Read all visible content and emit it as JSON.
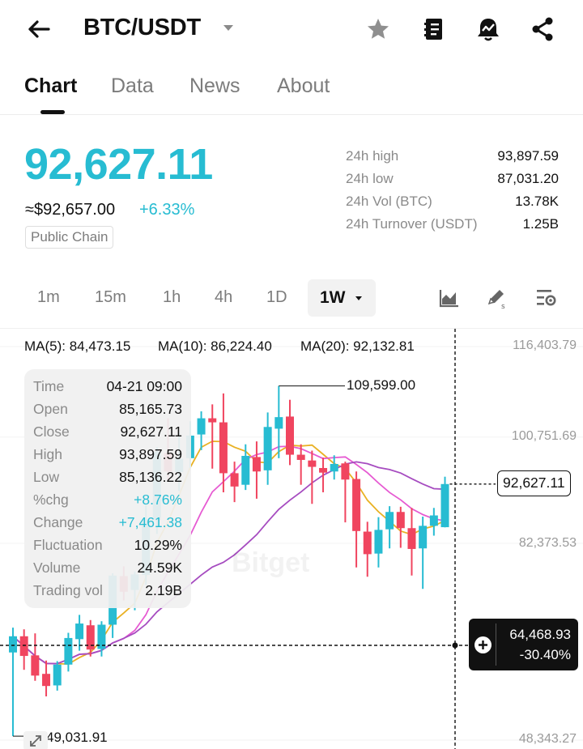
{
  "header": {
    "pair": "BTC/USDT",
    "icons": [
      "back-arrow-icon",
      "star-icon",
      "notebook-icon",
      "alert-bell-icon",
      "share-icon"
    ]
  },
  "tabs": [
    {
      "label": "Chart",
      "active": true
    },
    {
      "label": "Data",
      "active": false
    },
    {
      "label": "News",
      "active": false
    },
    {
      "label": "About",
      "active": false
    }
  ],
  "price": {
    "last": "92,627.11",
    "approx": "≈$92,657.00",
    "change_pct": "+6.33%",
    "tag": "Public Chain",
    "color_up": "#27bcd2"
  },
  "stats": [
    {
      "label": "24h high",
      "value": "93,897.59"
    },
    {
      "label": "24h low",
      "value": "87,031.20"
    },
    {
      "label": "24h Vol (BTC)",
      "value": "13.78K"
    },
    {
      "label": "24h Turnover (USDT)",
      "value": "1.25B"
    }
  ],
  "timeframes": {
    "items": [
      "1m",
      "15m",
      "1h",
      "4h",
      "1D"
    ],
    "selected": "1W"
  },
  "chart": {
    "ma": [
      {
        "label": "MA(5): 84,473.15",
        "color": "#e9b123"
      },
      {
        "label": "MA(10): 86,224.40",
        "color": "#e65ad2"
      },
      {
        "label": "MA(20): 92,132.81",
        "color": "#a64cc0"
      }
    ],
    "y_labels": [
      "116,403.79",
      "100,751.69",
      "82,373.53",
      "48,343.27"
    ],
    "high_marker": "109,599.00",
    "low_marker": "49,031.91",
    "last_price_label": "92,627.11",
    "crosshair": {
      "price": "64,468.93",
      "pct": "-30.40%"
    },
    "watermark": "Bitget",
    "info_box": [
      {
        "k": "Time",
        "v": "04-21 09:00"
      },
      {
        "k": "Open",
        "v": "85,165.73"
      },
      {
        "k": "Close",
        "v": "92,627.11"
      },
      {
        "k": "High",
        "v": "93,897.59"
      },
      {
        "k": "Low",
        "v": "85,136.22"
      },
      {
        "k": "%chg",
        "v": "+8.76%",
        "up": true
      },
      {
        "k": "Change",
        "v": "+7,461.38",
        "up": true
      },
      {
        "k": "Fluctuation",
        "v": "10.29%"
      },
      {
        "k": "Volume",
        "v": "24.59K"
      },
      {
        "k": "Trading vol",
        "v": "2.19B"
      }
    ]
  },
  "chart_data": {
    "type": "candlestick",
    "interval": "1W",
    "up_color": "#27bcd2",
    "down_color": "#f0455f",
    "candles": [
      {
        "o": 63500,
        "c": 66300,
        "h": 67800,
        "l": 49032
      },
      {
        "o": 66300,
        "c": 62900,
        "h": 67500,
        "l": 60500
      },
      {
        "o": 63000,
        "c": 59500,
        "h": 66800,
        "l": 58600
      },
      {
        "o": 59800,
        "c": 57700,
        "h": 62100,
        "l": 55900
      },
      {
        "o": 57800,
        "c": 61400,
        "h": 62000,
        "l": 56900
      },
      {
        "o": 61400,
        "c": 66000,
        "h": 66900,
        "l": 60200
      },
      {
        "o": 65800,
        "c": 68500,
        "h": 70000,
        "l": 63800
      },
      {
        "o": 68200,
        "c": 64000,
        "h": 69100,
        "l": 62800
      },
      {
        "o": 64100,
        "c": 68300,
        "h": 68900,
        "l": 62800
      },
      {
        "o": 68300,
        "c": 76800,
        "h": 77200,
        "l": 66000
      },
      {
        "o": 76700,
        "c": 74000,
        "h": 78400,
        "l": 72500
      },
      {
        "o": 74300,
        "c": 77000,
        "h": 77500,
        "l": 70800
      },
      {
        "o": 76900,
        "c": 86500,
        "h": 89000,
        "l": 75200
      },
      {
        "o": 86400,
        "c": 98200,
        "h": 99000,
        "l": 84000
      },
      {
        "o": 98000,
        "c": 94800,
        "h": 104000,
        "l": 93200
      },
      {
        "o": 94700,
        "c": 97000,
        "h": 101500,
        "l": 91400
      },
      {
        "o": 97100,
        "c": 101000,
        "h": 103500,
        "l": 95400
      },
      {
        "o": 101200,
        "c": 104000,
        "h": 105200,
        "l": 98500
      },
      {
        "o": 104000,
        "c": 103300,
        "h": 106400,
        "l": 95300
      },
      {
        "o": 103300,
        "c": 94500,
        "h": 108300,
        "l": 91200
      },
      {
        "o": 94500,
        "c": 92200,
        "h": 96500,
        "l": 89500
      },
      {
        "o": 92500,
        "c": 97500,
        "h": 99500,
        "l": 91600
      },
      {
        "o": 97300,
        "c": 94800,
        "h": 100000,
        "l": 90100
      },
      {
        "o": 95000,
        "c": 102500,
        "h": 105000,
        "l": 92500
      },
      {
        "o": 102200,
        "c": 104200,
        "h": 109599,
        "l": 97100
      },
      {
        "o": 104300,
        "c": 97700,
        "h": 107200,
        "l": 95900
      },
      {
        "o": 97700,
        "c": 96800,
        "h": 99500,
        "l": 92500
      },
      {
        "o": 96700,
        "c": 95600,
        "h": 98400,
        "l": 89200
      },
      {
        "o": 95400,
        "c": 94600,
        "h": 97200,
        "l": 91200
      },
      {
        "o": 94800,
        "c": 96100,
        "h": 97600,
        "l": 93400
      },
      {
        "o": 96200,
        "c": 93400,
        "h": 96500,
        "l": 86000
      },
      {
        "o": 93500,
        "c": 84500,
        "h": 94800,
        "l": 78200
      },
      {
        "o": 84400,
        "c": 80500,
        "h": 86100,
        "l": 76600
      },
      {
        "o": 80600,
        "c": 84700,
        "h": 86900,
        "l": 78200
      },
      {
        "o": 84800,
        "c": 87800,
        "h": 88800,
        "l": 81500
      },
      {
        "o": 87800,
        "c": 85000,
        "h": 88700,
        "l": 81600
      },
      {
        "o": 85000,
        "c": 81400,
        "h": 88500,
        "l": 76800
      },
      {
        "o": 81500,
        "c": 85400,
        "h": 87000,
        "l": 74500
      },
      {
        "o": 85400,
        "c": 87200,
        "h": 88500,
        "l": 83700
      },
      {
        "o": 85166,
        "c": 92627,
        "h": 93898,
        "l": 85136
      }
    ],
    "ma_periods": [
      5,
      10,
      20
    ]
  }
}
